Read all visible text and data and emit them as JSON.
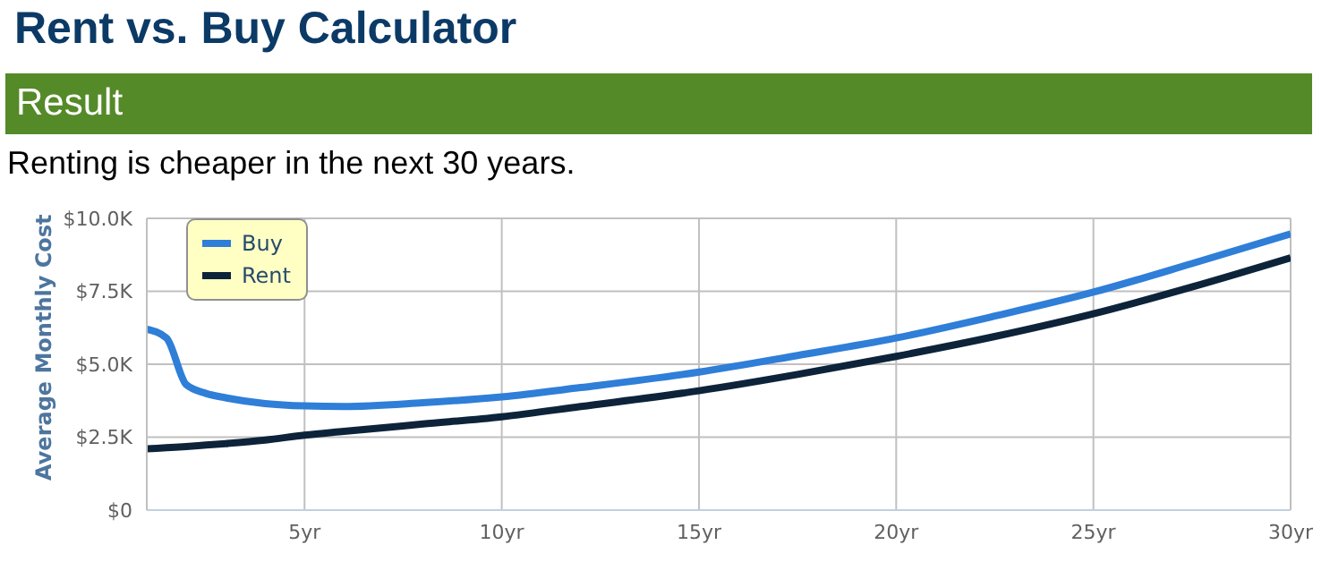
{
  "chart_data": {
    "type": "line",
    "title": "Rent vs. Buy Calculator",
    "subtitle": "Result",
    "annotations": [
      "Renting is cheaper in the next 30 years."
    ],
    "ylabel": "Average Monthly Cost",
    "x": [
      1,
      1.5,
      2,
      2.5,
      3,
      4,
      5,
      6,
      8,
      10,
      12,
      15,
      17.5,
      20,
      22.5,
      25,
      27.5,
      30
    ],
    "series": [
      {
        "name": "Buy",
        "color": "#2f7ed8",
        "values": [
          6200,
          5900,
          4300,
          4000,
          3850,
          3650,
          3570,
          3550,
          3680,
          3880,
          4200,
          4730,
          5300,
          5900,
          6650,
          7470,
          8450,
          9470
        ]
      },
      {
        "name": "Rent",
        "color": "#0d233a",
        "values": [
          2100,
          2140,
          2180,
          2230,
          2280,
          2400,
          2570,
          2700,
          2950,
          3200,
          3550,
          4090,
          4650,
          5270,
          5950,
          6730,
          7650,
          8650
        ]
      }
    ],
    "xlim": [
      1,
      30
    ],
    "xticks": [
      {
        "value": 5,
        "label": "5yr"
      },
      {
        "value": 10,
        "label": "10yr"
      },
      {
        "value": 15,
        "label": "15yr"
      },
      {
        "value": 20,
        "label": "20yr"
      },
      {
        "value": 25,
        "label": "25yr"
      },
      {
        "value": 30,
        "label": "30yr"
      }
    ],
    "ylim": [
      0,
      10000
    ],
    "yticks": [
      {
        "value": 0,
        "label": "$0"
      },
      {
        "value": 2500,
        "label": "$2.5K"
      },
      {
        "value": 5000,
        "label": "$5.0K"
      },
      {
        "value": 7500,
        "label": "$7.5K"
      },
      {
        "value": 10000,
        "label": "$10.0K"
      }
    ],
    "grid": true,
    "legend": "top left"
  }
}
